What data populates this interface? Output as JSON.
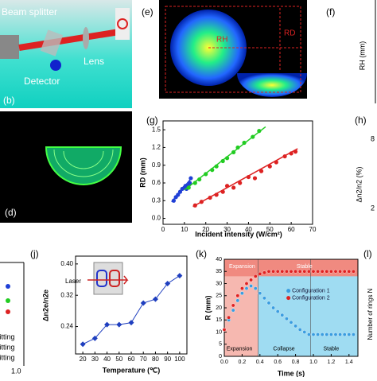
{
  "panels": {
    "b": {
      "label": "(b)",
      "texts": [
        "Beam splitter",
        "Lens",
        "Detector"
      ]
    },
    "e": {
      "label": "(e)",
      "texts": [
        "RH",
        "RD"
      ]
    },
    "f": {
      "label": "(f)",
      "ylabel": "RH (mm)"
    },
    "d": {
      "label": "(d)"
    },
    "h": {
      "label": "(h)",
      "ylabel": "Δn2/n2 (%)",
      "ticks": [
        "8",
        "2"
      ]
    },
    "i": {
      "texts": [
        "Fitting",
        "Fitting",
        "Fitting",
        "1.0"
      ]
    },
    "l": {
      "label": "(l)",
      "ylabel": "Number of rings N"
    }
  },
  "chart_data": [
    {
      "type": "scatter",
      "label": "(g)",
      "xlabel": "Incident intensity (W/cm²)",
      "ylabel": "RD (mm)",
      "xlim": [
        0,
        70
      ],
      "ylim": [
        -0.1,
        1.65
      ],
      "xticks": [
        0,
        10,
        20,
        30,
        40,
        50,
        60,
        70
      ],
      "yticks": [
        {
          "value": 0,
          "label": "0.0"
        },
        0.3,
        0.6,
        0.9,
        1.2,
        1.5
      ],
      "series": [
        {
          "color": "#1f3fd6",
          "x": [
            5,
            6,
            7,
            8,
            9,
            10,
            10.5,
            11,
            12,
            12.5,
            13
          ],
          "values": [
            0.3,
            0.36,
            0.4,
            0.45,
            0.5,
            0.52,
            0.55,
            0.5,
            0.56,
            0.6,
            0.68
          ],
          "fit_x": [
            4,
            13
          ],
          "fit_values": [
            0.28,
            0.67
          ]
        },
        {
          "color": "#22cc22",
          "x": [
            12,
            15,
            17,
            20,
            23,
            25,
            28,
            30,
            33,
            35,
            38,
            42,
            45
          ],
          "values": [
            0.52,
            0.6,
            0.66,
            0.75,
            0.82,
            0.88,
            0.97,
            1.02,
            1.12,
            1.2,
            1.28,
            1.38,
            1.48
          ],
          "fit_x": [
            10,
            48
          ],
          "fit_values": [
            0.48,
            1.55
          ]
        },
        {
          "color": "#dd2222",
          "x": [
            15,
            18,
            22,
            25,
            28,
            30,
            33,
            36,
            40,
            43,
            46,
            50,
            53,
            57,
            60,
            62
          ],
          "values": [
            0.22,
            0.28,
            0.35,
            0.4,
            0.45,
            0.55,
            0.52,
            0.6,
            0.7,
            0.68,
            0.8,
            0.88,
            0.95,
            1.05,
            1.1,
            1.13
          ],
          "fit_x": [
            14,
            63
          ],
          "fit_values": [
            0.2,
            1.18
          ]
        }
      ]
    },
    {
      "type": "line",
      "label": "(j)",
      "xlabel": "Temperature (℃)",
      "ylabel": "Δn2e/n2e",
      "annotation": "Laser",
      "color": "#1f3fbf",
      "xlim": [
        14,
        106
      ],
      "ylim": [
        0.17,
        0.42
      ],
      "xticks": [
        20,
        30,
        40,
        50,
        60,
        70,
        80,
        90,
        100
      ],
      "yticks": [
        0.24,
        0.32,
        {
          "value": 0.4,
          "label": "0.40"
        }
      ],
      "x": [
        20,
        30,
        40,
        50,
        60,
        70,
        80,
        90,
        100
      ],
      "values": [
        0.195,
        0.21,
        0.245,
        0.245,
        0.25,
        0.3,
        0.31,
        0.35,
        0.37
      ]
    },
    {
      "type": "scatter",
      "label": "(k)",
      "xlabel": "Time (s)",
      "ylabel": "R (mm)",
      "xlim": [
        0,
        1.5
      ],
      "ylim": [
        0,
        40
      ],
      "xticks": [
        {
          "value": 0,
          "label": "0.0"
        },
        0.2,
        0.4,
        0.6,
        0.8,
        {
          "value": 1,
          "label": "1.0"
        },
        1.2,
        1.4
      ],
      "yticks": [
        0,
        5,
        10,
        15,
        20,
        25,
        30,
        35,
        40
      ],
      "annotations": [
        "Expansion",
        "Stable",
        "Expansion",
        "Collapse",
        "Stable"
      ],
      "x": [
        0,
        0.05,
        0.1,
        0.15,
        0.2,
        0.25,
        0.3,
        0.35,
        0.4,
        0.45,
        0.5,
        0.55,
        0.6,
        0.65,
        0.7,
        0.75,
        0.8,
        0.85,
        0.9,
        0.95,
        1,
        1.05,
        1.1,
        1.15,
        1.2,
        1.25,
        1.3,
        1.35,
        1.4,
        1.45
      ],
      "series": [
        {
          "name": "Configuration 1",
          "color": "#3a9de0",
          "values": [
            11,
            15,
            19,
            23,
            26,
            28,
            29,
            28,
            26,
            24,
            22,
            20,
            18.5,
            17,
            15.5,
            14,
            12.5,
            11,
            10,
            9,
            9,
            9,
            9,
            9,
            9,
            9,
            9,
            9,
            9,
            9
          ]
        },
        {
          "name": "Configuration 2",
          "color": "#e02020",
          "values": [
            11,
            16,
            21,
            25,
            28,
            30,
            31.5,
            33,
            34,
            34.5,
            35,
            35,
            35,
            35,
            35,
            35,
            35,
            35,
            35,
            35,
            35,
            35,
            35,
            35,
            35,
            35,
            35,
            35,
            35,
            35
          ]
        }
      ]
    }
  ]
}
